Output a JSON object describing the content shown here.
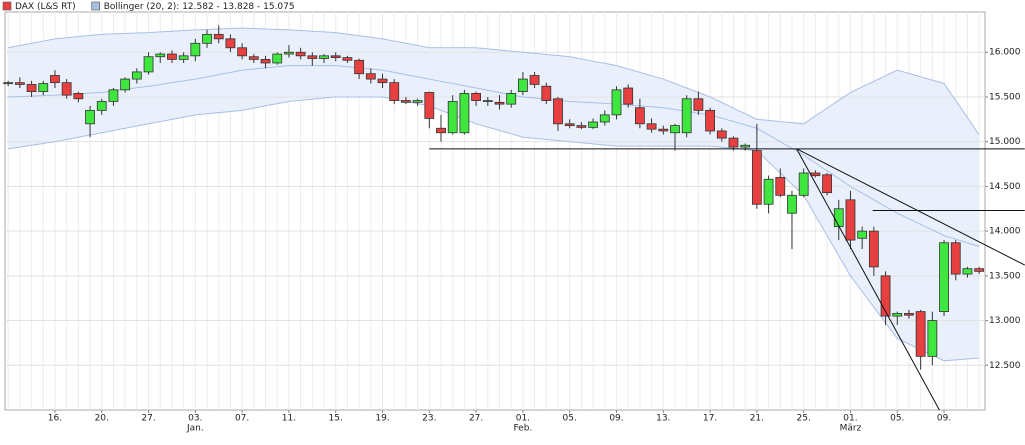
{
  "chart_data": {
    "type": "candlestick",
    "legend": [
      {
        "label": "DAX (L&S RT)",
        "color": "#e84040"
      },
      {
        "label": "Bollinger (20, 2): 12.582 - 13.828 - 15.075",
        "color": "#a9bfe6"
      }
    ],
    "categories": [
      null,
      null,
      null,
      null,
      "16.",
      null,
      null,
      null,
      "20.",
      null,
      null,
      null,
      "27.",
      null,
      null,
      null,
      "03.",
      null,
      null,
      null,
      "07.",
      null,
      null,
      null,
      "11.",
      null,
      null,
      null,
      "15.",
      null,
      null,
      null,
      "19.",
      null,
      null,
      null,
      "23.",
      null,
      null,
      null,
      "27.",
      null,
      null,
      null,
      "01.",
      null,
      null,
      null,
      "05.",
      null,
      null,
      null,
      "09.",
      null,
      null,
      null,
      "13.",
      null,
      null,
      null,
      "17.",
      null,
      null,
      null,
      "21.",
      null,
      null,
      null,
      "25.",
      null,
      null,
      null,
      "01.",
      null,
      null,
      null,
      "05.",
      null,
      null,
      null,
      "09.",
      null,
      null,
      null
    ],
    "month_labels": [
      {
        "at": 16,
        "label": "Jan."
      },
      {
        "at": 44,
        "label": "Feb."
      },
      {
        "at": 72,
        "label": "März"
      }
    ],
    "open": [
      15650,
      15660,
      15640,
      15560,
      15740,
      15660,
      15540,
      15200,
      15350,
      15450,
      15580,
      15700,
      15780,
      15950,
      15980,
      15920,
      15960,
      16100,
      16200,
      16150,
      16050,
      15950,
      15920,
      15880,
      15980,
      16000,
      15960,
      15930,
      15960,
      15940,
      15910,
      15760,
      15700,
      15660,
      15460,
      15440,
      15550,
      15150,
      15100,
      15100,
      15540,
      15460,
      15440,
      15420,
      15560,
      15740,
      15620,
      15480,
      15200,
      15180,
      15160,
      15220,
      15300,
      15600,
      15380,
      15200,
      15140,
      15100,
      15100,
      15480,
      15350,
      15120,
      15040,
      14940,
      14900,
      14300,
      14600,
      14200,
      14400,
      14650,
      14630,
      14050,
      14350,
      13920,
      14000,
      13500,
      13050,
      13080,
      13100,
      12600,
      13100,
      13870,
      13520,
      13580
    ],
    "high": [
      15680,
      15720,
      15680,
      15680,
      15800,
      15700,
      15560,
      15400,
      15480,
      15600,
      15720,
      15820,
      16000,
      16000,
      16020,
      16000,
      16150,
      16250,
      16300,
      16200,
      16100,
      15980,
      15960,
      16000,
      16080,
      16050,
      16000,
      15980,
      16000,
      15960,
      15930,
      15820,
      15760,
      15700,
      15500,
      15480,
      15560,
      15300,
      15520,
      15580,
      15560,
      15500,
      15520,
      15580,
      15780,
      15780,
      15660,
      15500,
      15250,
      15220,
      15260,
      15350,
      15620,
      15640,
      15480,
      15260,
      15180,
      15200,
      15520,
      15560,
      15380,
      15150,
      15060,
      14980,
      15200,
      14620,
      14700,
      14450,
      14700,
      14680,
      14650,
      14350,
      14450,
      14050,
      14050,
      13550,
      13100,
      13120,
      13120,
      13100,
      13900,
      13900,
      13600,
      13600
    ],
    "low": [
      15620,
      15600,
      15500,
      15520,
      15600,
      15480,
      15440,
      15050,
      15300,
      15400,
      15550,
      15650,
      15750,
      15880,
      15880,
      15880,
      15900,
      16050,
      16100,
      16000,
      15920,
      15880,
      15820,
      15860,
      15940,
      15920,
      15850,
      15880,
      15900,
      15880,
      15700,
      15650,
      15600,
      15420,
      15420,
      15400,
      15150,
      15000,
      15080,
      15080,
      15400,
      15400,
      15360,
      15380,
      15520,
      15600,
      15420,
      15120,
      15150,
      15140,
      15140,
      15180,
      15250,
      15380,
      15150,
      15100,
      15080,
      14900,
      15050,
      15300,
      15080,
      15000,
      14900,
      14900,
      14250,
      14200,
      14380,
      13800,
      14380,
      14600,
      14400,
      13900,
      13800,
      13800,
      13500,
      12950,
      12950,
      13020,
      12450,
      12500,
      13050,
      13450,
      13480,
      13520
    ],
    "close": [
      15660,
      15640,
      15560,
      15650,
      15660,
      15520,
      15480,
      15350,
      15450,
      15580,
      15700,
      15780,
      15950,
      15980,
      15920,
      15960,
      16100,
      16200,
      16150,
      16050,
      15960,
      15920,
      15880,
      15980,
      16000,
      15960,
      15930,
      15960,
      15940,
      15910,
      15760,
      15700,
      15660,
      15460,
      15440,
      15460,
      15260,
      15100,
      15450,
      15540,
      15460,
      15460,
      15420,
      15540,
      15700,
      15640,
      15460,
      15200,
      15180,
      15160,
      15220,
      15300,
      15580,
      15420,
      15200,
      15140,
      15120,
      15180,
      15480,
      15350,
      15120,
      15040,
      14940,
      14960,
      14300,
      14580,
      14400,
      14400,
      14650,
      14620,
      14430,
      14250,
      13900,
      14000,
      13600,
      13050,
      13080,
      13060,
      12600,
      13000,
      13870,
      13520,
      13580,
      13550
    ],
    "up_color": "#3ee63e",
    "down_color": "#e84040",
    "bollinger": {
      "color": "#a9bfe6",
      "fill": "#e9f0fc",
      "upper": [
        16050,
        16075,
        16100,
        16125,
        16150,
        16162,
        16175,
        16188,
        16200,
        16205,
        16210,
        16215,
        16220,
        16228,
        16235,
        16243,
        16250,
        16255,
        16260,
        16265,
        16270,
        16265,
        16260,
        16255,
        16250,
        16243,
        16235,
        16228,
        16220,
        16203,
        16185,
        16168,
        16150,
        16125,
        16100,
        16075,
        16050,
        16050,
        16050,
        16050,
        16050,
        16038,
        16025,
        16013,
        16000,
        15988,
        15975,
        15963,
        15950,
        15925,
        15900,
        15875,
        15850,
        15813,
        15775,
        15738,
        15700,
        15650,
        15600,
        15550,
        15500,
        15438,
        15375,
        15313,
        15250,
        15238,
        15225,
        15213,
        15200,
        15288,
        15375,
        15463,
        15550,
        15613,
        15675,
        15738,
        15800,
        15763,
        15725,
        15688,
        15650,
        15460,
        15270,
        15075
      ],
      "middle": [
        15500,
        15505,
        15510,
        15515,
        15520,
        15528,
        15535,
        15543,
        15550,
        15568,
        15585,
        15603,
        15620,
        15640,
        15660,
        15680,
        15700,
        15725,
        15750,
        15775,
        15800,
        15813,
        15825,
        15838,
        15850,
        15850,
        15850,
        15850,
        15850,
        15838,
        15825,
        15813,
        15800,
        15775,
        15750,
        15725,
        15700,
        15675,
        15650,
        15625,
        15600,
        15575,
        15550,
        15525,
        15500,
        15488,
        15475,
        15463,
        15450,
        15443,
        15435,
        15428,
        15420,
        15410,
        15400,
        15390,
        15380,
        15360,
        15340,
        15320,
        15300,
        15263,
        15225,
        15188,
        15150,
        15075,
        15000,
        14925,
        14850,
        14763,
        14675,
        14588,
        14500,
        14425,
        14350,
        14275,
        14200,
        14138,
        14075,
        14013,
        13950,
        13910,
        13870,
        13828
      ],
      "lower": [
        14920,
        14940,
        14960,
        14980,
        15000,
        15025,
        15050,
        15075,
        15100,
        15125,
        15150,
        15175,
        15200,
        15225,
        15250,
        15275,
        15300,
        15313,
        15325,
        15338,
        15350,
        15375,
        15400,
        15425,
        15450,
        15463,
        15475,
        15488,
        15500,
        15500,
        15500,
        15500,
        15500,
        15475,
        15450,
        15425,
        15400,
        15350,
        15300,
        15250,
        15200,
        15163,
        15125,
        15088,
        15050,
        15038,
        15025,
        15013,
        15000,
        14988,
        14975,
        14963,
        14950,
        14950,
        14950,
        14950,
        14950,
        14950,
        14950,
        14950,
        14950,
        14938,
        14925,
        14913,
        14900,
        14775,
        14650,
        14525,
        14400,
        14175,
        13950,
        13725,
        13500,
        13325,
        13150,
        12975,
        12800,
        12738,
        12675,
        12613,
        12550,
        12560,
        12570,
        12582
      ]
    },
    "trendlines": [
      {
        "x": [
          36,
          86.9
        ],
        "y": [
          14920,
          14920
        ]
      },
      {
        "x": [
          73.9,
          86.9
        ],
        "y": [
          14230,
          14230
        ]
      },
      {
        "x": [
          67.4,
          86.9
        ],
        "y": [
          14920,
          13620
        ]
      },
      {
        "x": [
          67.4,
          79.6
        ],
        "y": [
          14920,
          12000
        ]
      }
    ],
    "xlim": [
      -0.27,
      83.5
    ],
    "ylim": [
      12000,
      16450
    ],
    "yticks": [
      {
        "value": 12500,
        "label": "12.500"
      },
      {
        "value": 13000,
        "label": "13.000"
      },
      {
        "value": 13500,
        "label": "13.500"
      },
      {
        "value": 14000,
        "label": "14.000"
      },
      {
        "value": 14500,
        "label": "14.500"
      },
      {
        "value": 15000,
        "label": "15.000"
      },
      {
        "value": 15500,
        "label": "15.500"
      },
      {
        "value": 16000,
        "label": "16.000"
      }
    ],
    "grid": true
  }
}
